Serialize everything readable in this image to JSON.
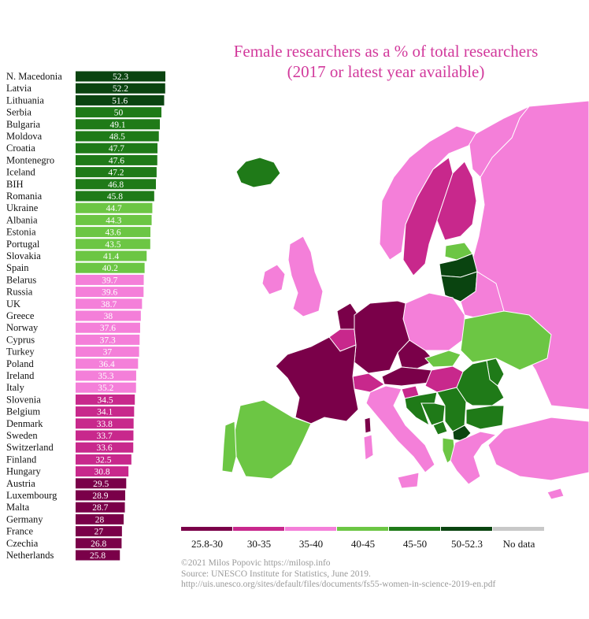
{
  "chart_data": {
    "type": "bar",
    "orientation": "horizontal",
    "title": "Female researchers as a % of total researchers",
    "subtitle": "(2017 or latest year available)",
    "categories": [
      "N. Macedonia",
      "Latvia",
      "Lithuania",
      "Serbia",
      "Bulgaria",
      "Moldova",
      "Croatia",
      "Montenegro",
      "Iceland",
      "BIH",
      "Romania",
      "Ukraine",
      "Albania",
      "Estonia",
      "Portugal",
      "Slovakia",
      "Spain",
      "Belarus",
      "Russia",
      "UK",
      "Greece",
      "Norway",
      "Cyprus",
      "Turkey",
      "Poland",
      "Ireland",
      "Italy",
      "Slovenia",
      "Belgium",
      "Denmark",
      "Sweden",
      "Switzerland",
      "Finland",
      "Hungary",
      "Austria",
      "Luxembourg",
      "Malta",
      "Germany",
      "France",
      "Czechia",
      "Netherlands"
    ],
    "values": [
      52.3,
      52.2,
      51.6,
      50,
      49.1,
      48.5,
      47.7,
      47.6,
      47.2,
      46.8,
      45.8,
      44.7,
      44.3,
      43.6,
      43.5,
      41.4,
      40.2,
      39.7,
      39.6,
      38.7,
      38,
      37.6,
      37.3,
      37,
      36.4,
      35.3,
      35.2,
      34.5,
      34.1,
      33.8,
      33.7,
      33.6,
      32.5,
      30.8,
      29.5,
      28.9,
      28.7,
      28,
      27,
      26.8,
      25.8
    ],
    "value_labels": [
      "52.3",
      "52.2",
      "51.6",
      "50",
      "49.1",
      "48.5",
      "47.7",
      "47.6",
      "47.2",
      "46.8",
      "45.8",
      "44.7",
      "44.3",
      "43.6",
      "43.5",
      "41.4",
      "40.2",
      "39.7",
      "39.6",
      "38.7",
      "38",
      "37.6",
      "37.3",
      "37",
      "36.4",
      "35.3",
      "35.2",
      "34.5",
      "34.1",
      "33.8",
      "33.7",
      "33.6",
      "32.5",
      "30.8",
      "29.5",
      "28.9",
      "28.7",
      "28",
      "27",
      "26.8",
      "25.8"
    ],
    "xlim": [
      0,
      52.3
    ],
    "bins": [
      {
        "label": "25.8-30",
        "min": 25.8,
        "max": 30,
        "color": "#7a0049"
      },
      {
        "label": "30-35",
        "min": 30,
        "max": 35,
        "color": "#c8288c"
      },
      {
        "label": "35-40",
        "min": 35,
        "max": 40,
        "color": "#f47fd9"
      },
      {
        "label": "40-45",
        "min": 40,
        "max": 45,
        "color": "#6cc644"
      },
      {
        "label": "45-50",
        "min": 45,
        "max": 50,
        "color": "#1f7a18"
      },
      {
        "label": "50-52.3",
        "min": 50,
        "max": 52.3,
        "color": "#0a4410"
      }
    ],
    "no_data": {
      "label": "No data",
      "color": "#c8c8c8"
    }
  },
  "colors": {
    "title": "#d23a9c",
    "credits": "#9a9a9a",
    "country_border": "#ffffff"
  },
  "credits": {
    "line1": "©2021 Milos Popovic https://milosp.info",
    "line2": "Source: UNESCO Institute for Statistics, June 2019.",
    "line3": "http://uis.unesco.org/sites/default/files/documents/fs55-women-in-science-2019-en.pdf"
  }
}
